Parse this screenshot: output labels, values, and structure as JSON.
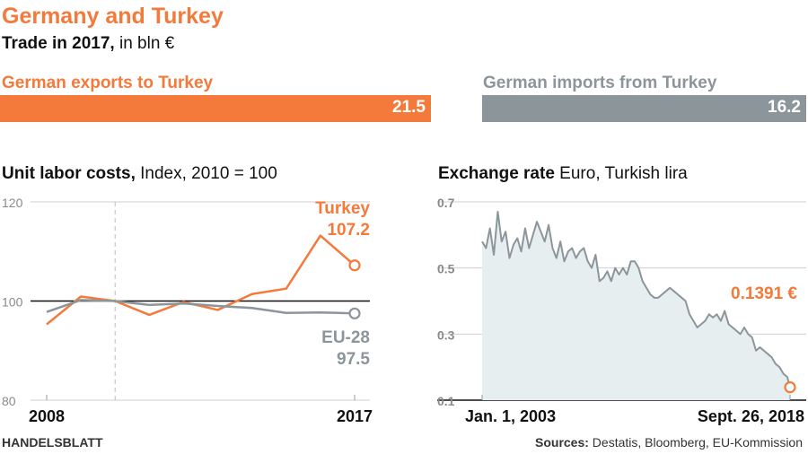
{
  "header": {
    "title": "Germany and Turkey",
    "subtitle_bold": "Trade in 2017,",
    "subtitle_rest": " in bln €"
  },
  "trade": {
    "exports_label": "German exports to Turkey",
    "exports_value": "21.5",
    "imports_label": "German imports from Turkey",
    "imports_value": "16.2"
  },
  "ulc": {
    "title_bold": "Unit labor costs,",
    "title_rest": " Index, 2010 = 100"
  },
  "fx": {
    "title_bold": "Exchange rate",
    "title_rest": " Euro, Turkish lira"
  },
  "colors": {
    "orange": "#f47a3c",
    "gray": "#8c969a",
    "area": "#e6eef0"
  },
  "chart_data": [
    {
      "type": "bar",
      "categories": [
        "German exports to Turkey",
        "German imports from Turkey"
      ],
      "values": [
        21.5,
        16.2
      ],
      "title": "Trade in 2017, in bln €"
    },
    {
      "type": "line",
      "title": "Unit labor costs, Index, 2010 = 100",
      "x": [
        2008,
        2009,
        2010,
        2011,
        2012,
        2013,
        2014,
        2015,
        2016,
        2017
      ],
      "ylim": [
        80,
        120
      ],
      "yticks": [
        "120",
        "100",
        "80"
      ],
      "xticks": [
        "2008",
        "2017"
      ],
      "series": [
        {
          "name": "Turkey",
          "values": [
            95.3,
            100.9,
            100.0,
            97.2,
            99.8,
            98.2,
            101.4,
            102.5,
            113.2,
            107.2
          ],
          "end_label": "107.2"
        },
        {
          "name": "EU-28",
          "values": [
            97.8,
            100.2,
            100.0,
            99.2,
            99.5,
            99.0,
            98.6,
            97.6,
            97.7,
            97.5
          ],
          "end_label": "97.5"
        }
      ]
    },
    {
      "type": "area",
      "title": "Exchange rate Euro, Turkish lira",
      "ylim": [
        0.1,
        0.7
      ],
      "yticks": [
        "0.7",
        "0.5",
        "0.3",
        "0.1"
      ],
      "xticks": [
        "Jan. 1, 2003",
        "Sept. 26, 2018"
      ],
      "x_years": [
        2003.0,
        2003.2,
        2003.4,
        2003.6,
        2003.8,
        2004.0,
        2004.2,
        2004.4,
        2004.6,
        2004.8,
        2005.0,
        2005.2,
        2005.4,
        2005.6,
        2005.8,
        2006.0,
        2006.2,
        2006.4,
        2006.6,
        2006.8,
        2007.0,
        2007.2,
        2007.4,
        2007.6,
        2007.8,
        2008.0,
        2008.2,
        2008.4,
        2008.6,
        2008.8,
        2009.0,
        2009.2,
        2009.4,
        2009.6,
        2009.8,
        2010.0,
        2010.2,
        2010.4,
        2010.6,
        2010.8,
        2011.0,
        2011.2,
        2011.4,
        2011.6,
        2011.8,
        2012.0,
        2012.2,
        2012.4,
        2012.6,
        2012.8,
        2013.0,
        2013.2,
        2013.4,
        2013.6,
        2013.8,
        2014.0,
        2014.2,
        2014.4,
        2014.6,
        2014.8,
        2015.0,
        2015.2,
        2015.4,
        2015.6,
        2015.8,
        2016.0,
        2016.2,
        2016.4,
        2016.6,
        2016.8,
        2017.0,
        2017.2,
        2017.4,
        2017.6,
        2017.8,
        2018.0,
        2018.2,
        2018.4,
        2018.6,
        2018.74
      ],
      "values": [
        0.58,
        0.56,
        0.62,
        0.54,
        0.67,
        0.58,
        0.61,
        0.53,
        0.57,
        0.59,
        0.55,
        0.62,
        0.56,
        0.6,
        0.64,
        0.61,
        0.58,
        0.63,
        0.56,
        0.53,
        0.58,
        0.52,
        0.55,
        0.56,
        0.53,
        0.55,
        0.56,
        0.52,
        0.5,
        0.54,
        0.46,
        0.47,
        0.49,
        0.46,
        0.5,
        0.48,
        0.5,
        0.48,
        0.52,
        0.52,
        0.5,
        0.46,
        0.44,
        0.42,
        0.41,
        0.41,
        0.42,
        0.43,
        0.44,
        0.43,
        0.42,
        0.41,
        0.4,
        0.36,
        0.34,
        0.32,
        0.33,
        0.34,
        0.36,
        0.35,
        0.36,
        0.34,
        0.37,
        0.33,
        0.32,
        0.31,
        0.3,
        0.32,
        0.3,
        0.29,
        0.25,
        0.26,
        0.25,
        0.24,
        0.23,
        0.21,
        0.2,
        0.18,
        0.17,
        0.1391
      ],
      "end_label": "0.1391 €"
    }
  ],
  "footer": {
    "brand": "HANDELSBLATT",
    "sources_bold": "Sources:",
    "sources_rest": " Destatis, Bloomberg, EU-Kommission"
  }
}
